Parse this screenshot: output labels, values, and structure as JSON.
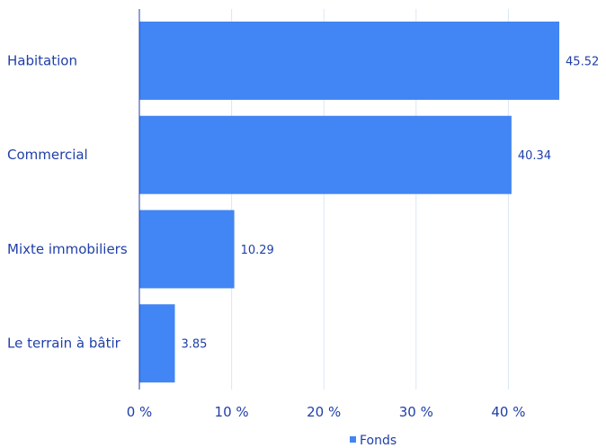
{
  "chart_data": {
    "type": "bar",
    "orientation": "horizontal",
    "categories": [
      "Habitation",
      "Commercial",
      "Mixte immobiliers",
      "Le terrain à bâtir"
    ],
    "series": [
      {
        "name": "Fonds",
        "values": [
          45.52,
          40.34,
          10.29,
          3.85
        ],
        "color": "#4285f4"
      }
    ],
    "value_labels": [
      "45.52",
      "40.34",
      "10.29",
      "3.85"
    ],
    "x_ticks": [
      0,
      10,
      20,
      30,
      40
    ],
    "x_tick_labels": [
      "0 %",
      "10 %",
      "20 %",
      "30 %",
      "40 %"
    ],
    "xlim": [
      0,
      50
    ],
    "grid": "vertical",
    "legend_position": "bottom-center",
    "colors": {
      "bar": "#4285f4",
      "text": "#1f3fa8",
      "grid": "#dbe6f5",
      "axis": "#1f3fa8"
    }
  }
}
